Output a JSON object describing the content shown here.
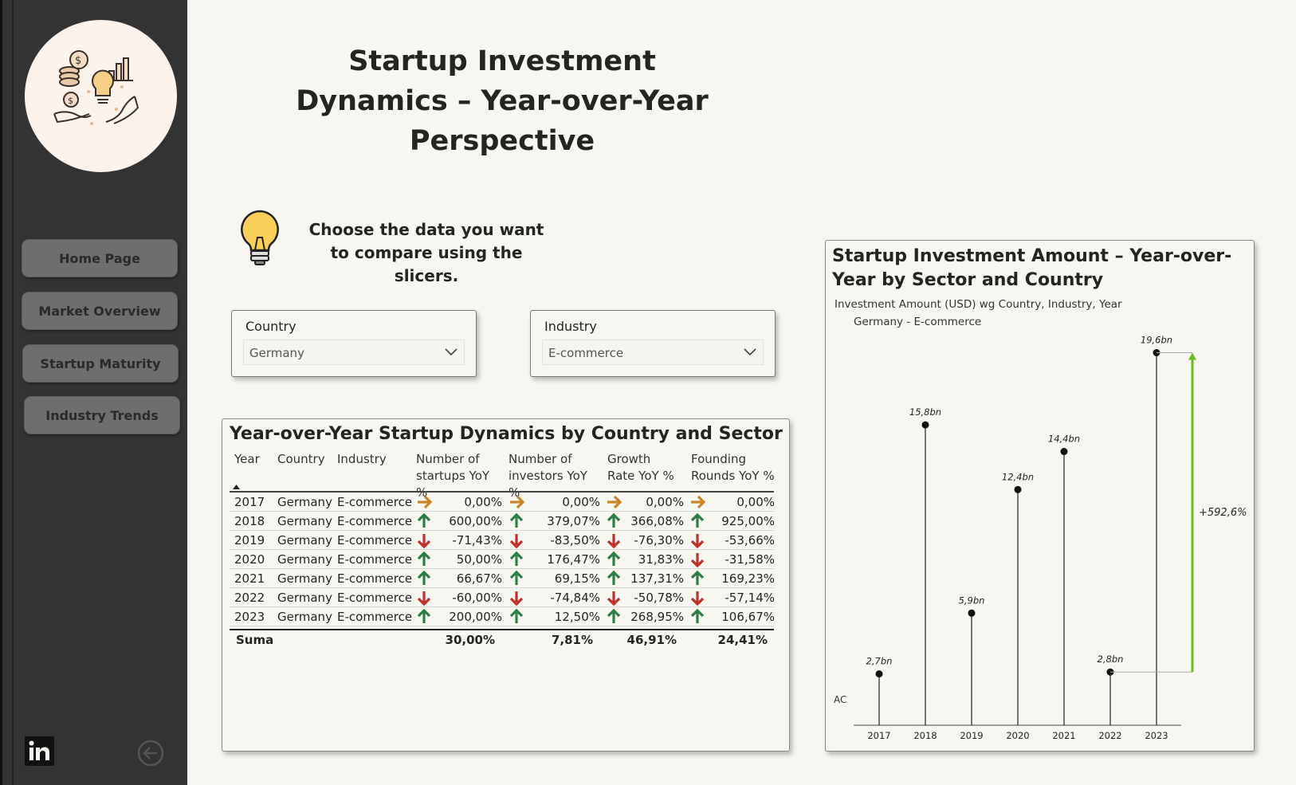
{
  "sidebar": {
    "nav": [
      {
        "label": "Home Page"
      },
      {
        "label": "Market Overview"
      },
      {
        "label": "Startup Maturity"
      },
      {
        "label": "Industry Trends"
      }
    ],
    "linkedin_icon": "linkedin-icon",
    "back_icon": "back-arrow-icon"
  },
  "header": {
    "title": "Startup Investment Dynamics – Year-over-Year Perspective"
  },
  "hint": {
    "text": "Choose the data you want to compare using the slicers.",
    "icon": "lightbulb-icon"
  },
  "slicers": {
    "country": {
      "label": "Country",
      "value": "Germany"
    },
    "industry": {
      "label": "Industry",
      "value": "E-commerce"
    }
  },
  "table": {
    "title": "Year-over-Year Startup Dynamics by Country and Sector",
    "columns": [
      "Year",
      "Country",
      "Industry",
      "Number of startups YoY %",
      "Number of investors YoY %",
      "Growth Rate YoY %",
      "Founding Rounds YoY %"
    ],
    "rows": [
      {
        "year": "2017",
        "country": "Germany",
        "industry": "E-commerce",
        "startups": "0,00%",
        "startups_dir": "flat",
        "investors": "0,00%",
        "investors_dir": "flat",
        "growth": "0,00%",
        "growth_dir": "flat",
        "rounds": "0,00%",
        "rounds_dir": "flat"
      },
      {
        "year": "2018",
        "country": "Germany",
        "industry": "E-commerce",
        "startups": "600,00%",
        "startups_dir": "up",
        "investors": "379,07%",
        "investors_dir": "up",
        "growth": "366,08%",
        "growth_dir": "up",
        "rounds": "925,00%",
        "rounds_dir": "up"
      },
      {
        "year": "2019",
        "country": "Germany",
        "industry": "E-commerce",
        "startups": "-71,43%",
        "startups_dir": "down",
        "investors": "-83,50%",
        "investors_dir": "down",
        "growth": "-76,30%",
        "growth_dir": "down",
        "rounds": "-53,66%",
        "rounds_dir": "down"
      },
      {
        "year": "2020",
        "country": "Germany",
        "industry": "E-commerce",
        "startups": "50,00%",
        "startups_dir": "up",
        "investors": "176,47%",
        "investors_dir": "up",
        "growth": "31,83%",
        "growth_dir": "up",
        "rounds": "-31,58%",
        "rounds_dir": "down"
      },
      {
        "year": "2021",
        "country": "Germany",
        "industry": "E-commerce",
        "startups": "66,67%",
        "startups_dir": "up",
        "investors": "69,15%",
        "investors_dir": "up",
        "growth": "137,31%",
        "growth_dir": "up",
        "rounds": "169,23%",
        "rounds_dir": "up"
      },
      {
        "year": "2022",
        "country": "Germany",
        "industry": "E-commerce",
        "startups": "-60,00%",
        "startups_dir": "down",
        "investors": "-74,84%",
        "investors_dir": "down",
        "growth": "-50,78%",
        "growth_dir": "down",
        "rounds": "-57,14%",
        "rounds_dir": "down"
      },
      {
        "year": "2023",
        "country": "Germany",
        "industry": "E-commerce",
        "startups": "200,00%",
        "startups_dir": "up",
        "investors": "12,50%",
        "investors_dir": "up",
        "growth": "268,95%",
        "growth_dir": "up",
        "rounds": "106,67%",
        "rounds_dir": "up"
      }
    ],
    "total": {
      "label": "Suma",
      "startups": "30,00%",
      "investors": "7,81%",
      "growth": "46,91%",
      "rounds": "24,41%"
    },
    "colors": {
      "up": "#2e7d46",
      "down": "#c0302b",
      "flat": "#c8862a"
    }
  },
  "chart_data": {
    "type": "lollipop",
    "title": "Startup Investment Amount – Year-over-Year by Sector and Country",
    "subtitle": "Investment Amount (USD) wg Country, Industry, Year",
    "series_label": "Germany - E-commerce",
    "y_axis_label": "AC",
    "categories": [
      "2017",
      "2018",
      "2019",
      "2020",
      "2021",
      "2022",
      "2023"
    ],
    "values": [
      2.7,
      15.8,
      5.9,
      12.4,
      14.4,
      2.8,
      19.6
    ],
    "value_labels": [
      "2,7bn",
      "15,8bn",
      "5,9bn",
      "12,4bn",
      "14,4bn",
      "2,8bn",
      "19,6bn"
    ],
    "unit": "bn USD",
    "variance": {
      "from": "2022",
      "to": "2023",
      "label": "+592,6%",
      "color": "#6cbf1e"
    },
    "ylim": [
      0,
      20
    ]
  }
}
